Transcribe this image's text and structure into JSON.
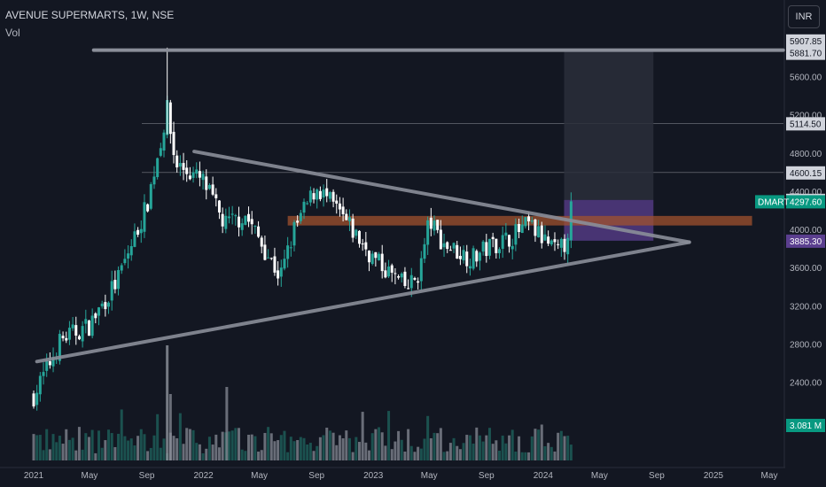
{
  "header": {
    "title": "AVENUE SUPERMARTS, 1W, NSE",
    "volume_label": "Vol",
    "currency": "INR"
  },
  "colors": {
    "background": "#131722",
    "up": "#26a69a",
    "down": "#ffffff",
    "pattern_line": "#8a8e99",
    "resistance_zone": "#a0522d",
    "target_box": "#2a2e39",
    "stop_box": "#5b3f8f",
    "symbol_tag": "#089981",
    "level_tag": "#d1d4dc"
  },
  "chart_data": {
    "type": "candlestick",
    "symbol": "DMART",
    "interval": "1W",
    "x_tick_labels": [
      "2021",
      "May",
      "Sep",
      "2022",
      "May",
      "Sep",
      "2023",
      "May",
      "Sep",
      "2024",
      "May",
      "Sep",
      "2025",
      "May"
    ],
    "x_tick_dates": [
      "2021-01-01",
      "2021-05-01",
      "2021-09-01",
      "2022-01-01",
      "2022-05-01",
      "2022-09-01",
      "2023-01-01",
      "2023-05-01",
      "2023-09-01",
      "2024-01-01",
      "2024-05-01",
      "2024-09-01",
      "2025-01-01",
      "2025-05-01"
    ],
    "y_tick_labels": [
      "2400.00",
      "2800.00",
      "3200.00",
      "3600.00",
      "4000.00",
      "4400.00",
      "4800.00",
      "5200.00",
      "5600.00"
    ],
    "y_ticks": [
      2400,
      2800,
      3200,
      3600,
      4000,
      4400,
      4800,
      5200,
      5600
    ],
    "ylim": [
      2050,
      6000
    ],
    "price_levels": [
      {
        "label": "5907.85",
        "value": 5907.85,
        "style": "light"
      },
      {
        "label": "5881.70",
        "value": 5881.7,
        "style": "light"
      },
      {
        "label": "5114.50",
        "value": 5114.5,
        "style": "light"
      },
      {
        "label": "4600.15",
        "value": 4600.15,
        "style": "light"
      },
      {
        "label": "4312.45",
        "value": 4312.45,
        "style": "light"
      },
      {
        "label": "4297.60",
        "value": 4297.6,
        "style": "symbol",
        "symbol_label": "DMART"
      },
      {
        "label": "3885.30",
        "value": 3885.3,
        "style": "purple"
      }
    ],
    "volume_tag": "3.081 M",
    "annotations": {
      "horizontal_line": {
        "value": 5881.7,
        "from": "2021-05-10",
        "to": "2025-05-31"
      },
      "upper_trendline": {
        "from_date": "2021-12-12",
        "from_value": 4820,
        "to_date": "2024-11-10",
        "to_value": 3870
      },
      "lower_trendline": {
        "from_date": "2021-01-08",
        "from_value": 2620,
        "to_date": "2024-11-10",
        "to_value": 3870
      },
      "resistance_zone": {
        "from_date": "2022-07-01",
        "to_date": "2025-03-25",
        "top": 4145,
        "bottom": 4045
      },
      "target_zone": {
        "from_date": "2024-02-15",
        "to_date": "2024-08-25",
        "top": 5881.7,
        "bottom": 4312.45
      },
      "stop_zone": {
        "from_date": "2024-02-15",
        "to_date": "2024-08-25",
        "top": 4312.45,
        "bottom": 3885.3
      }
    },
    "anchors": [
      {
        "date": "2021-01-01",
        "value": 2260
      },
      {
        "date": "2021-03-01",
        "value": 2850
      },
      {
        "date": "2021-05-01",
        "value": 3000
      },
      {
        "date": "2021-07-01",
        "value": 3480
      },
      {
        "date": "2021-09-01",
        "value": 4250
      },
      {
        "date": "2021-10-15",
        "value": 5250
      },
      {
        "date": "2021-11-01",
        "value": 4700
      },
      {
        "date": "2022-01-01",
        "value": 4500
      },
      {
        "date": "2022-02-15",
        "value": 4050
      },
      {
        "date": "2022-04-01",
        "value": 4150
      },
      {
        "date": "2022-05-01",
        "value": 3900
      },
      {
        "date": "2022-06-15",
        "value": 3500
      },
      {
        "date": "2022-07-15",
        "value": 4000
      },
      {
        "date": "2022-09-01",
        "value": 4450
      },
      {
        "date": "2022-10-15",
        "value": 4200
      },
      {
        "date": "2022-12-01",
        "value": 3900
      },
      {
        "date": "2023-01-01",
        "value": 3700
      },
      {
        "date": "2023-03-15",
        "value": 3380
      },
      {
        "date": "2023-04-10",
        "value": 3550
      },
      {
        "date": "2023-05-01",
        "value": 4100
      },
      {
        "date": "2023-06-01",
        "value": 3850
      },
      {
        "date": "2023-08-01",
        "value": 3700
      },
      {
        "date": "2023-09-15",
        "value": 3850
      },
      {
        "date": "2023-10-15",
        "value": 3900
      },
      {
        "date": "2023-12-01",
        "value": 4050
      },
      {
        "date": "2024-01-01",
        "value": 3900
      },
      {
        "date": "2024-02-01",
        "value": 3750
      },
      {
        "date": "2024-02-20",
        "value": 3880
      },
      {
        "date": "2024-03-01",
        "value": 4297.6
      }
    ]
  }
}
